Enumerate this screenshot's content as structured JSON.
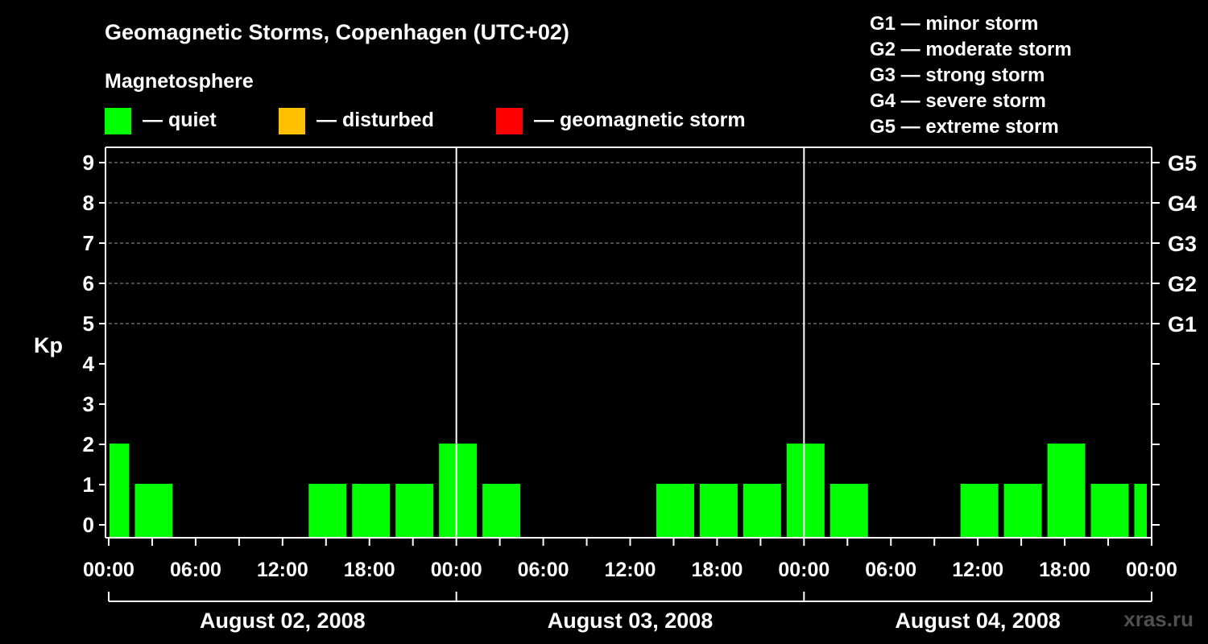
{
  "title": "Geomagnetic Storms, Copenhagen (UTC+02)",
  "legend": {
    "heading": "Magnetosphere",
    "items": [
      {
        "label": "— quiet",
        "color": "#00ff00"
      },
      {
        "label": "— disturbed",
        "color": "#ffc000"
      },
      {
        "label": "— geomagnetic storm",
        "color": "#ff0000"
      }
    ]
  },
  "storm_scale": [
    "G1 — minor storm",
    "G2 — moderate storm",
    "G3 — strong storm",
    "G4 — severe storm",
    "G5 — extreme storm"
  ],
  "watermark": "xras.ru",
  "chart_data": {
    "type": "bar",
    "title": "Geomagnetic Storms, Copenhagen (UTC+02)",
    "ylabel": "Kp",
    "ylim": [
      0,
      9
    ],
    "yticks": [
      "0",
      "1",
      "2",
      "3",
      "4",
      "5",
      "6",
      "7",
      "8",
      "9"
    ],
    "right_axis_labels": [
      {
        "kp": 5,
        "label": "G1"
      },
      {
        "kp": 6,
        "label": "G2"
      },
      {
        "kp": 7,
        "label": "G3"
      },
      {
        "kp": 8,
        "label": "G4"
      },
      {
        "kp": 9,
        "label": "G5"
      }
    ],
    "x_range_hours": [
      0,
      72
    ],
    "xtick_labels": [
      "00:00",
      "06:00",
      "12:00",
      "18:00",
      "00:00",
      "06:00",
      "12:00",
      "18:00",
      "00:00",
      "06:00",
      "12:00",
      "18:00",
      "00:00"
    ],
    "days": [
      "August 02, 2008",
      "August 03, 2008",
      "August 04, 2008"
    ],
    "grid": "dashed horizontal at Kp 5-9",
    "series": [
      {
        "name": "Kp index",
        "bars": [
          {
            "start_hour": 0,
            "end_hour": 1.75,
            "kp": 2,
            "status": "quiet"
          },
          {
            "start_hour": 1.75,
            "end_hour": 4.75,
            "kp": 1,
            "status": "quiet"
          },
          {
            "start_hour": 4.75,
            "end_hour": 7.75,
            "kp": 0,
            "status": "quiet"
          },
          {
            "start_hour": 7.75,
            "end_hour": 10.75,
            "kp": 0,
            "status": "quiet"
          },
          {
            "start_hour": 10.75,
            "end_hour": 13.75,
            "kp": 0,
            "status": "quiet"
          },
          {
            "start_hour": 13.75,
            "end_hour": 16.75,
            "kp": 1,
            "status": "quiet"
          },
          {
            "start_hour": 16.75,
            "end_hour": 19.75,
            "kp": 1,
            "status": "quiet"
          },
          {
            "start_hour": 19.75,
            "end_hour": 22.75,
            "kp": 1,
            "status": "quiet"
          },
          {
            "start_hour": 22.75,
            "end_hour": 25.75,
            "kp": 2,
            "status": "quiet"
          },
          {
            "start_hour": 25.75,
            "end_hour": 28.75,
            "kp": 1,
            "status": "quiet"
          },
          {
            "start_hour": 28.75,
            "end_hour": 31.75,
            "kp": 0,
            "status": "quiet"
          },
          {
            "start_hour": 31.75,
            "end_hour": 34.75,
            "kp": 0,
            "status": "quiet"
          },
          {
            "start_hour": 34.75,
            "end_hour": 37.75,
            "kp": 0,
            "status": "quiet"
          },
          {
            "start_hour": 37.75,
            "end_hour": 40.75,
            "kp": 1,
            "status": "quiet"
          },
          {
            "start_hour": 40.75,
            "end_hour": 43.75,
            "kp": 1,
            "status": "quiet"
          },
          {
            "start_hour": 43.75,
            "end_hour": 46.75,
            "kp": 1,
            "status": "quiet"
          },
          {
            "start_hour": 46.75,
            "end_hour": 49.75,
            "kp": 2,
            "status": "quiet"
          },
          {
            "start_hour": 49.75,
            "end_hour": 52.75,
            "kp": 1,
            "status": "quiet"
          },
          {
            "start_hour": 52.75,
            "end_hour": 55.75,
            "kp": 0,
            "status": "quiet"
          },
          {
            "start_hour": 55.75,
            "end_hour": 58.75,
            "kp": 0,
            "status": "quiet"
          },
          {
            "start_hour": 58.75,
            "end_hour": 61.75,
            "kp": 1,
            "status": "quiet"
          },
          {
            "start_hour": 61.75,
            "end_hour": 64.75,
            "kp": 1,
            "status": "quiet"
          },
          {
            "start_hour": 64.75,
            "end_hour": 67.75,
            "kp": 2,
            "status": "quiet"
          },
          {
            "start_hour": 67.75,
            "end_hour": 70.75,
            "kp": 1,
            "status": "quiet"
          },
          {
            "start_hour": 70.75,
            "end_hour": 72,
            "kp": 1,
            "status": "quiet"
          }
        ]
      }
    ]
  }
}
